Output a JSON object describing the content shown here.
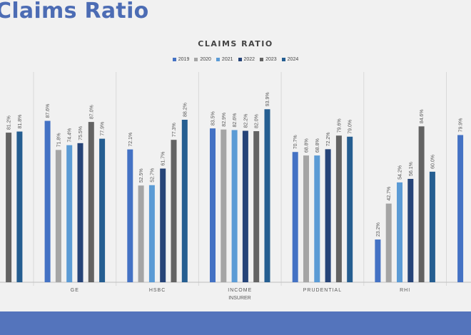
{
  "page": {
    "title": "Claims Ratio"
  },
  "chart_data": {
    "type": "bar",
    "title": "CLAIMS RATIO",
    "xlabel": "INSURER",
    "ylabel": "",
    "categories": [
      "",
      "GE",
      "HSBC",
      "INCOME",
      "PRUDENTIAL",
      "RHI",
      ""
    ],
    "series": [
      {
        "name": "2019",
        "color": "#4472c4",
        "values": [
          null,
          87.6,
          72.1,
          83.5,
          70.7,
          23.2,
          79.9
        ]
      },
      {
        "name": "2020",
        "color": "#a5a5a5",
        "values": [
          null,
          71.8,
          52.5,
          82.9,
          68.8,
          42.7,
          null
        ]
      },
      {
        "name": "2021",
        "color": "#5b9bd5",
        "values": [
          null,
          74.4,
          52.7,
          82.6,
          68.8,
          54.2,
          null
        ]
      },
      {
        "name": "2022",
        "color": "#264478",
        "values": [
          null,
          75.5,
          61.7,
          82.2,
          72.2,
          56.1,
          null
        ]
      },
      {
        "name": "2023",
        "color": "#636363",
        "values": [
          81.2,
          87.0,
          77.3,
          82.0,
          79.6,
          84.6,
          null
        ]
      },
      {
        "name": "2024",
        "color": "#255e91",
        "values": [
          81.8,
          77.9,
          88.2,
          93.9,
          79.0,
          60.0,
          null
        ]
      }
    ],
    "value_format": "percent_1dp",
    "ylim": [
      0,
      100
    ],
    "grid": "vertical category separators",
    "legend_position": "top"
  }
}
